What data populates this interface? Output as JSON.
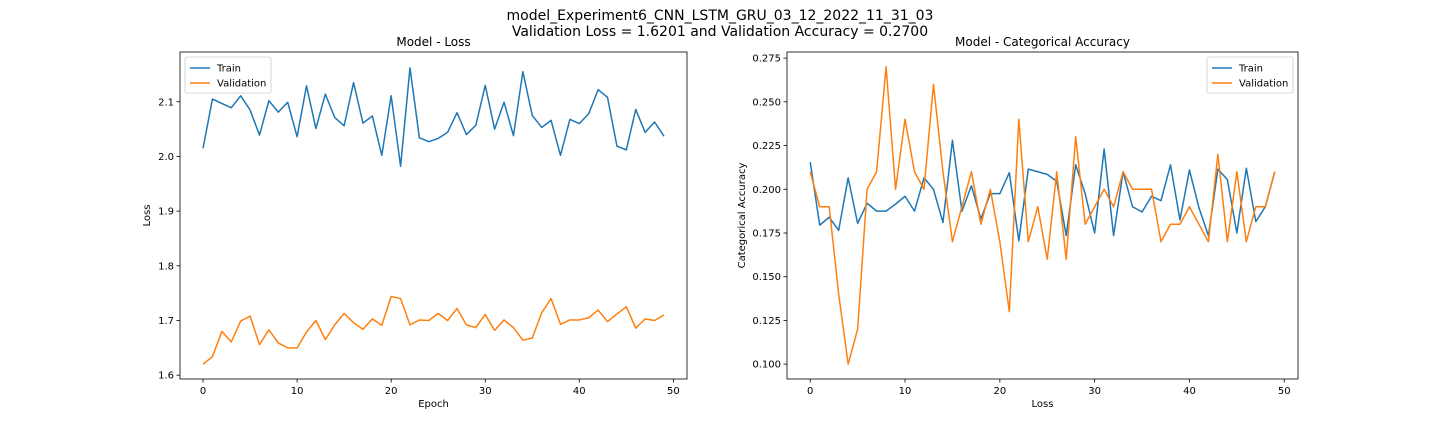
{
  "figure": {
    "suptitle_line1": "model_Experiment6_CNN_LSTM_GRU_03_12_2022_11_31_03",
    "suptitle_line2": "Validation Loss = 1.6201 and Validation Accuracy = 0.2700"
  },
  "colors": {
    "train": "#1f77b4",
    "validation": "#ff7f0e"
  },
  "chart_data": [
    {
      "type": "line",
      "title": "Model - Loss",
      "xlabel": "Epoch",
      "ylabel": "Loss",
      "xlim": [
        -2.45,
        51.45
      ],
      "ylim": [
        1.593,
        2.191
      ],
      "xticks": [
        0,
        10,
        20,
        30,
        40,
        50
      ],
      "xtick_labels": [
        "0",
        "10",
        "20",
        "30",
        "40",
        "50"
      ],
      "yticks": [
        1.6,
        1.7,
        1.8,
        1.9,
        2.0,
        2.1
      ],
      "ytick_labels": [
        "1.6",
        "1.7",
        "1.8",
        "1.9",
        "2.0",
        "2.1"
      ],
      "legend": "top-left",
      "grid": false,
      "x": [
        0,
        1,
        2,
        3,
        4,
        5,
        6,
        7,
        8,
        9,
        10,
        11,
        12,
        13,
        14,
        15,
        16,
        17,
        18,
        19,
        20,
        21,
        22,
        23,
        24,
        25,
        26,
        27,
        28,
        29,
        30,
        31,
        32,
        33,
        34,
        35,
        36,
        37,
        38,
        39,
        40,
        41,
        42,
        43,
        44,
        45,
        46,
        47,
        48,
        49
      ],
      "series": [
        {
          "name": "Train",
          "values": [
            2.015,
            2.105,
            2.097,
            2.089,
            2.111,
            2.085,
            2.039,
            2.102,
            2.081,
            2.099,
            2.036,
            2.129,
            2.051,
            2.114,
            2.071,
            2.056,
            2.135,
            2.061,
            2.074,
            2.002,
            2.111,
            1.982,
            2.162,
            2.034,
            2.027,
            2.033,
            2.044,
            2.08,
            2.04,
            2.057,
            2.13,
            2.05,
            2.099,
            2.038,
            2.155,
            2.075,
            2.053,
            2.066,
            2.002,
            2.068,
            2.06,
            2.078,
            2.122,
            2.108,
            2.019,
            2.012,
            2.086,
            2.044,
            2.063,
            2.037
          ]
        },
        {
          "name": "Validation",
          "values": [
            1.62,
            1.634,
            1.68,
            1.661,
            1.699,
            1.708,
            1.656,
            1.683,
            1.659,
            1.65,
            1.65,
            1.679,
            1.7,
            1.665,
            1.692,
            1.713,
            1.696,
            1.684,
            1.703,
            1.691,
            1.744,
            1.74,
            1.692,
            1.701,
            1.7,
            1.713,
            1.7,
            1.722,
            1.692,
            1.687,
            1.711,
            1.682,
            1.701,
            1.687,
            1.664,
            1.668,
            1.714,
            1.74,
            1.693,
            1.701,
            1.701,
            1.705,
            1.719,
            1.698,
            1.712,
            1.725,
            1.686,
            1.703,
            1.7,
            1.71
          ]
        }
      ]
    },
    {
      "type": "line",
      "title": "Model - Categorical Accuracy",
      "xlabel": "Loss",
      "ylabel": "Categorical Accuracy",
      "xlim": [
        -2.45,
        51.45
      ],
      "ylim": [
        0.0915,
        0.2785
      ],
      "xticks": [
        0,
        10,
        20,
        30,
        40,
        50
      ],
      "xtick_labels": [
        "0",
        "10",
        "20",
        "30",
        "40",
        "50"
      ],
      "yticks": [
        0.1,
        0.125,
        0.15,
        0.175,
        0.2,
        0.225,
        0.25,
        0.275
      ],
      "ytick_labels": [
        "0.100",
        "0.125",
        "0.150",
        "0.175",
        "0.200",
        "0.225",
        "0.250",
        "0.275"
      ],
      "legend": "top-right",
      "grid": false,
      "x": [
        0,
        1,
        2,
        3,
        4,
        5,
        6,
        7,
        8,
        9,
        10,
        11,
        12,
        13,
        14,
        15,
        16,
        17,
        18,
        19,
        20,
        21,
        22,
        23,
        24,
        25,
        26,
        27,
        28,
        29,
        30,
        31,
        32,
        33,
        34,
        35,
        36,
        37,
        38,
        39,
        40,
        41,
        42,
        43,
        44,
        45,
        46,
        47,
        48,
        49
      ],
      "series": [
        {
          "name": "Train",
          "values": [
            0.2155,
            0.1795,
            0.184,
            0.1765,
            0.2065,
            0.1805,
            0.192,
            0.1875,
            0.1875,
            0.1915,
            0.196,
            0.1875,
            0.2065,
            0.2,
            0.181,
            0.228,
            0.1875,
            0.202,
            0.183,
            0.1975,
            0.1975,
            0.2095,
            0.1705,
            0.2115,
            0.21,
            0.2085,
            0.2045,
            0.1735,
            0.214,
            0.1975,
            0.175,
            0.223,
            0.1735,
            0.21,
            0.19,
            0.187,
            0.196,
            0.1935,
            0.214,
            0.1825,
            0.211,
            0.1895,
            0.1735,
            0.2115,
            0.2055,
            0.175,
            0.212,
            0.1815,
            0.19,
            0.21
          ]
        },
        {
          "name": "Validation",
          "values": [
            0.21,
            0.19,
            0.19,
            0.14,
            0.1,
            0.12,
            0.2,
            0.21,
            0.27,
            0.2,
            0.24,
            0.21,
            0.2,
            0.26,
            0.21,
            0.17,
            0.19,
            0.21,
            0.18,
            0.2,
            0.17,
            0.13,
            0.24,
            0.17,
            0.19,
            0.16,
            0.21,
            0.16,
            0.23,
            0.18,
            0.19,
            0.2,
            0.19,
            0.21,
            0.2,
            0.2,
            0.2,
            0.17,
            0.18,
            0.18,
            0.19,
            0.18,
            0.17,
            0.22,
            0.17,
            0.21,
            0.17,
            0.19,
            0.19,
            0.21
          ]
        }
      ]
    }
  ]
}
